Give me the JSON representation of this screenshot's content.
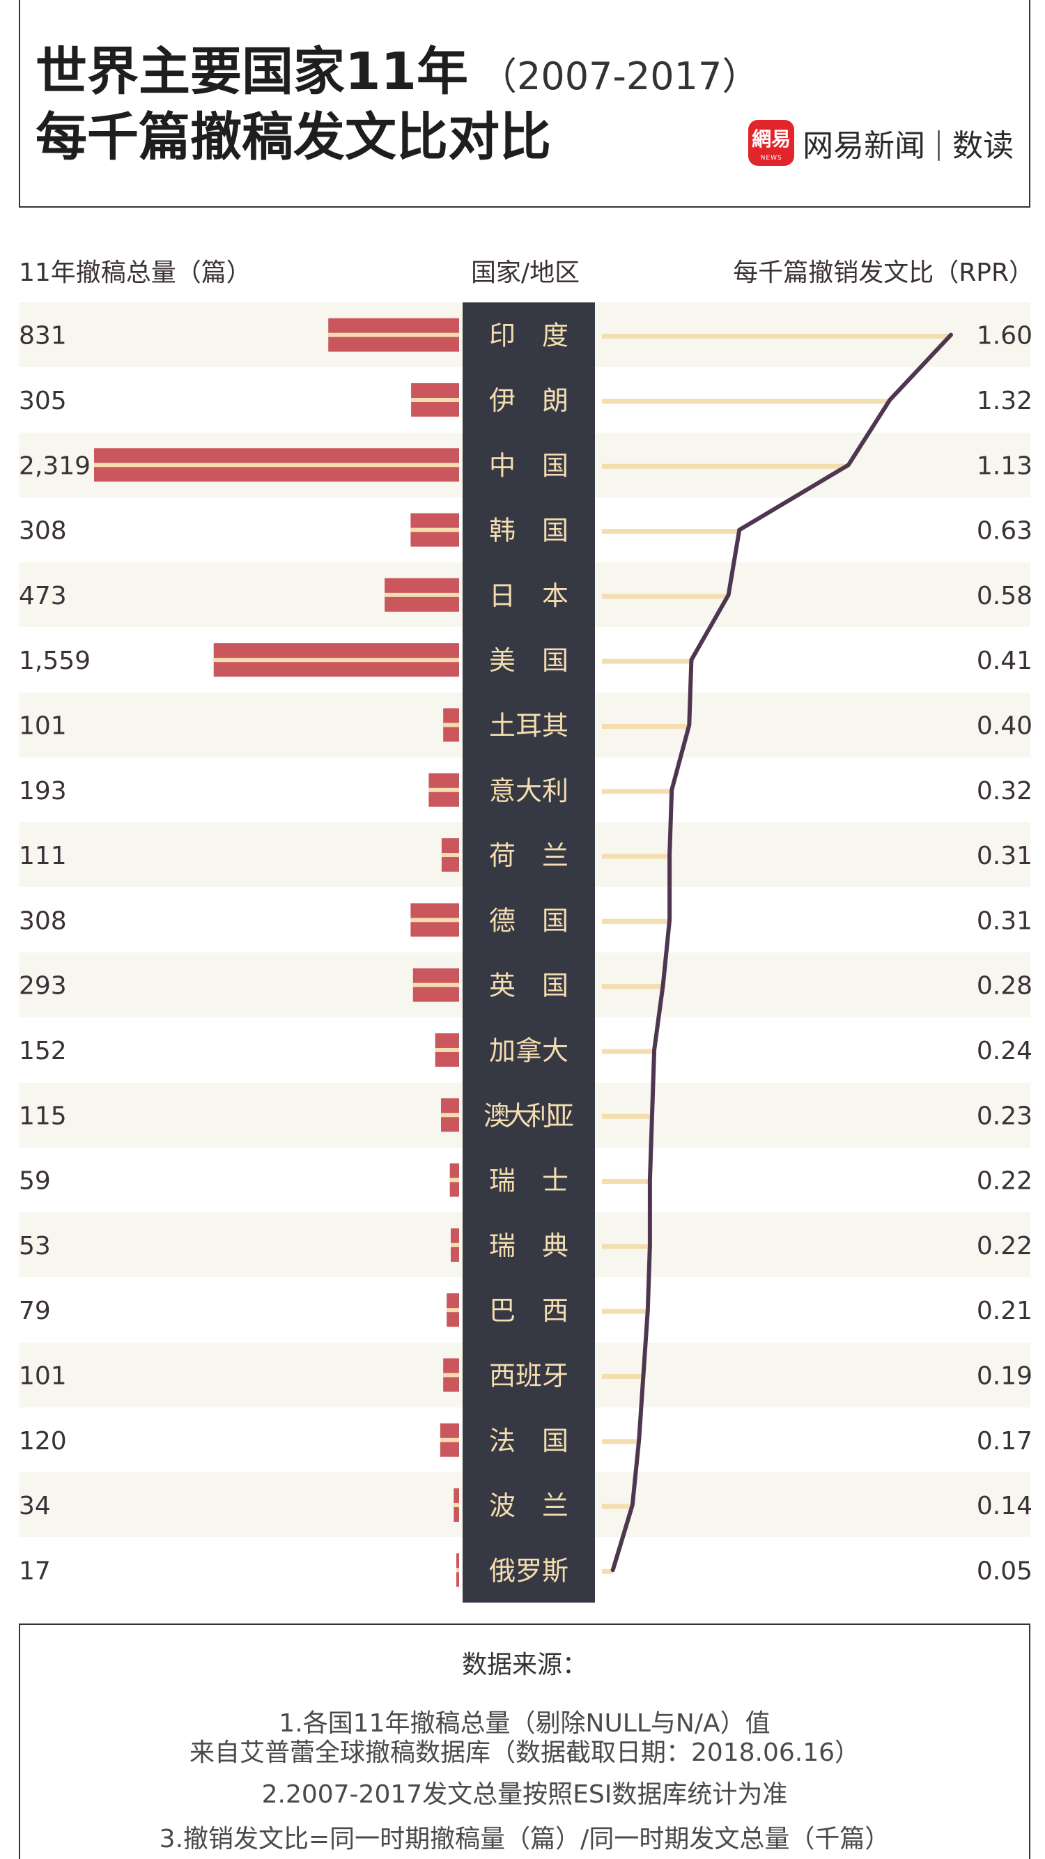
{
  "header": {
    "title_main": "世界主要国家11年",
    "title_years": "（2007-2017）",
    "title_line2": "每千篇撤稿发文比对比",
    "logo_badge": "網易",
    "logo_badge_sub": "NEWS",
    "logo_name": "网易新闻",
    "logo_sep": "|",
    "logo_section": "数读"
  },
  "columns": {
    "left": "11年撤稿总量（篇）",
    "center": "国家/地区",
    "right": "每千篇撤销发文比（RPR）"
  },
  "chart_data": {
    "type": "bar",
    "title": "世界主要国家11年（2007-2017）每千篇撤稿发文比对比",
    "categories": [
      "印　度",
      "伊　朗",
      "中　国",
      "韩　国",
      "日　本",
      "美　国",
      "土耳其",
      "意大利",
      "荷　兰",
      "德　国",
      "英　国",
      "加拿大",
      "澳大利亚",
      "瑞　士",
      "瑞　典",
      "巴　西",
      "西班牙",
      "法　国",
      "波　兰",
      "俄罗斯"
    ],
    "series": [
      {
        "name": "11年撤稿总量（篇）",
        "values": [
          831,
          305,
          2319,
          308,
          473,
          1559,
          101,
          193,
          111,
          308,
          293,
          152,
          115,
          59,
          53,
          79,
          101,
          120,
          34,
          17
        ],
        "labels": [
          "831",
          "305",
          "2,319",
          "308",
          "473",
          "1,559",
          "101",
          "193",
          "111",
          "308",
          "293",
          "152",
          "115",
          "59",
          "53",
          "79",
          "101",
          "120",
          "34",
          "17"
        ],
        "color": "#c9575d"
      },
      {
        "name": "每千篇撤销发文比（RPR）",
        "values": [
          1.6,
          1.32,
          1.13,
          0.63,
          0.58,
          0.41,
          0.4,
          0.32,
          0.31,
          0.31,
          0.28,
          0.24,
          0.23,
          0.22,
          0.22,
          0.21,
          0.19,
          0.17,
          0.14,
          0.05
        ],
        "labels": [
          "1.60",
          "1.32",
          "1.13",
          "0.63",
          "0.58",
          "0.41",
          "0.40",
          "0.32",
          "0.31",
          "0.31",
          "0.28",
          "0.24",
          "0.23",
          "0.22",
          "0.22",
          "0.21",
          "0.19",
          "0.17",
          "0.14",
          "0.05"
        ],
        "color": "#4e3650"
      }
    ],
    "colors": {
      "bar": "#c9575d",
      "bar_stripe": "#f4deb0",
      "rpr_guide": "#f4deb0",
      "line": "#4e3650",
      "center_column": "#363843",
      "center_text": "#f4deb0",
      "band": "#f7f6ef"
    }
  },
  "source": {
    "title": "数据来源：",
    "line1a": "1.各国11年撤稿总量（剔除NULL与N/A）值",
    "line1b": "来自艾普蕾全球撤稿数据库（数据截取日期：2018.06.16）",
    "line2": "2.2007-2017发文总量按照ESI数据库统计为准",
    "line3": "3.撤销发文比=同一时期撤稿量（篇）/同一时期发文总量（千篇）"
  }
}
